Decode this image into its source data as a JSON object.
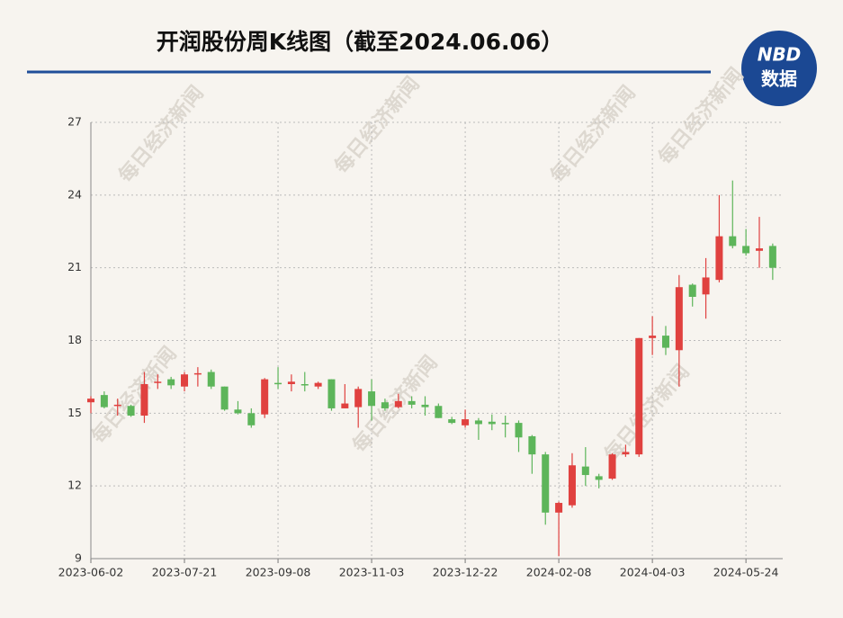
{
  "chart_data": {
    "type": "candlestick",
    "title": "开润股份周K线图（截至2024.06.06）",
    "logo": {
      "top": "NBD",
      "bottom": "数据"
    },
    "watermark": "每日经济新闻",
    "categories": [
      "2023-06-02",
      null,
      null,
      null,
      null,
      null,
      null,
      "2023-07-21",
      null,
      null,
      null,
      null,
      null,
      null,
      "2023-09-08",
      null,
      null,
      null,
      null,
      null,
      null,
      "2023-11-03",
      null,
      null,
      null,
      null,
      null,
      null,
      "2023-12-22",
      null,
      null,
      null,
      null,
      null,
      null,
      "2024-02-08",
      null,
      null,
      null,
      null,
      null,
      null,
      "2024-04-03",
      null,
      null,
      null,
      null,
      null,
      null,
      "2024-05-24",
      null,
      null
    ],
    "open": [
      15.45,
      15.75,
      15.3,
      15.3,
      14.9,
      16.25,
      16.4,
      16.1,
      16.6,
      16.7,
      16.1,
      15.15,
      15.0,
      14.95,
      16.25,
      16.2,
      16.2,
      16.1,
      16.4,
      15.2,
      15.25,
      15.9,
      15.45,
      15.25,
      15.5,
      15.35,
      15.3,
      14.75,
      14.5,
      14.7,
      14.65,
      14.6,
      14.6,
      14.05,
      13.3,
      10.9,
      11.2,
      12.8,
      12.4,
      12.3,
      13.3,
      13.3,
      18.1,
      18.2,
      17.6,
      20.3,
      19.9,
      20.5,
      22.3,
      21.9,
      21.7,
      21.9
    ],
    "close": [
      15.6,
      15.25,
      15.35,
      14.9,
      16.2,
      16.3,
      16.15,
      16.6,
      16.65,
      16.1,
      15.15,
      15.0,
      14.5,
      16.4,
      16.2,
      16.3,
      16.15,
      16.25,
      15.2,
      15.4,
      16.0,
      15.3,
      15.2,
      15.5,
      15.35,
      15.25,
      14.8,
      14.6,
      14.75,
      14.55,
      14.55,
      14.55,
      14.0,
      13.3,
      10.9,
      11.3,
      12.85,
      12.45,
      12.25,
      13.3,
      13.4,
      18.1,
      18.2,
      17.7,
      20.2,
      19.8,
      20.6,
      22.3,
      21.9,
      21.6,
      21.8,
      21.0
    ],
    "low": [
      15.0,
      15.2,
      14.9,
      14.85,
      14.6,
      16.0,
      16.0,
      15.9,
      16.1,
      16.0,
      15.1,
      14.95,
      14.4,
      14.8,
      16.0,
      15.9,
      15.9,
      16.0,
      15.1,
      15.2,
      14.4,
      14.7,
      15.1,
      15.2,
      15.2,
      14.9,
      14.8,
      14.55,
      14.4,
      13.9,
      14.3,
      14.0,
      13.4,
      12.5,
      10.4,
      9.1,
      11.1,
      12.0,
      11.9,
      12.25,
      13.2,
      13.2,
      17.4,
      17.4,
      16.1,
      19.4,
      18.9,
      20.4,
      21.8,
      21.5,
      21.0,
      20.5
    ],
    "high": [
      15.7,
      15.9,
      15.6,
      15.35,
      16.7,
      16.6,
      16.5,
      16.7,
      16.9,
      16.8,
      16.1,
      15.5,
      15.2,
      16.45,
      16.9,
      16.6,
      16.7,
      16.3,
      16.4,
      16.2,
      16.1,
      16.4,
      15.6,
      15.8,
      15.7,
      15.7,
      15.4,
      14.85,
      15.15,
      14.8,
      14.95,
      14.9,
      14.7,
      14.1,
      13.4,
      11.35,
      13.35,
      13.6,
      12.5,
      13.35,
      13.7,
      18.1,
      19.0,
      18.6,
      20.7,
      20.35,
      21.4,
      24.0,
      24.6,
      22.6,
      23.1,
      22.0
    ],
    "up_color": "#e0413f",
    "down_color": "#5db55a",
    "ylim": [
      9,
      27
    ],
    "yticks": [
      9,
      12,
      15,
      18,
      21,
      24,
      27
    ],
    "grid": true
  }
}
